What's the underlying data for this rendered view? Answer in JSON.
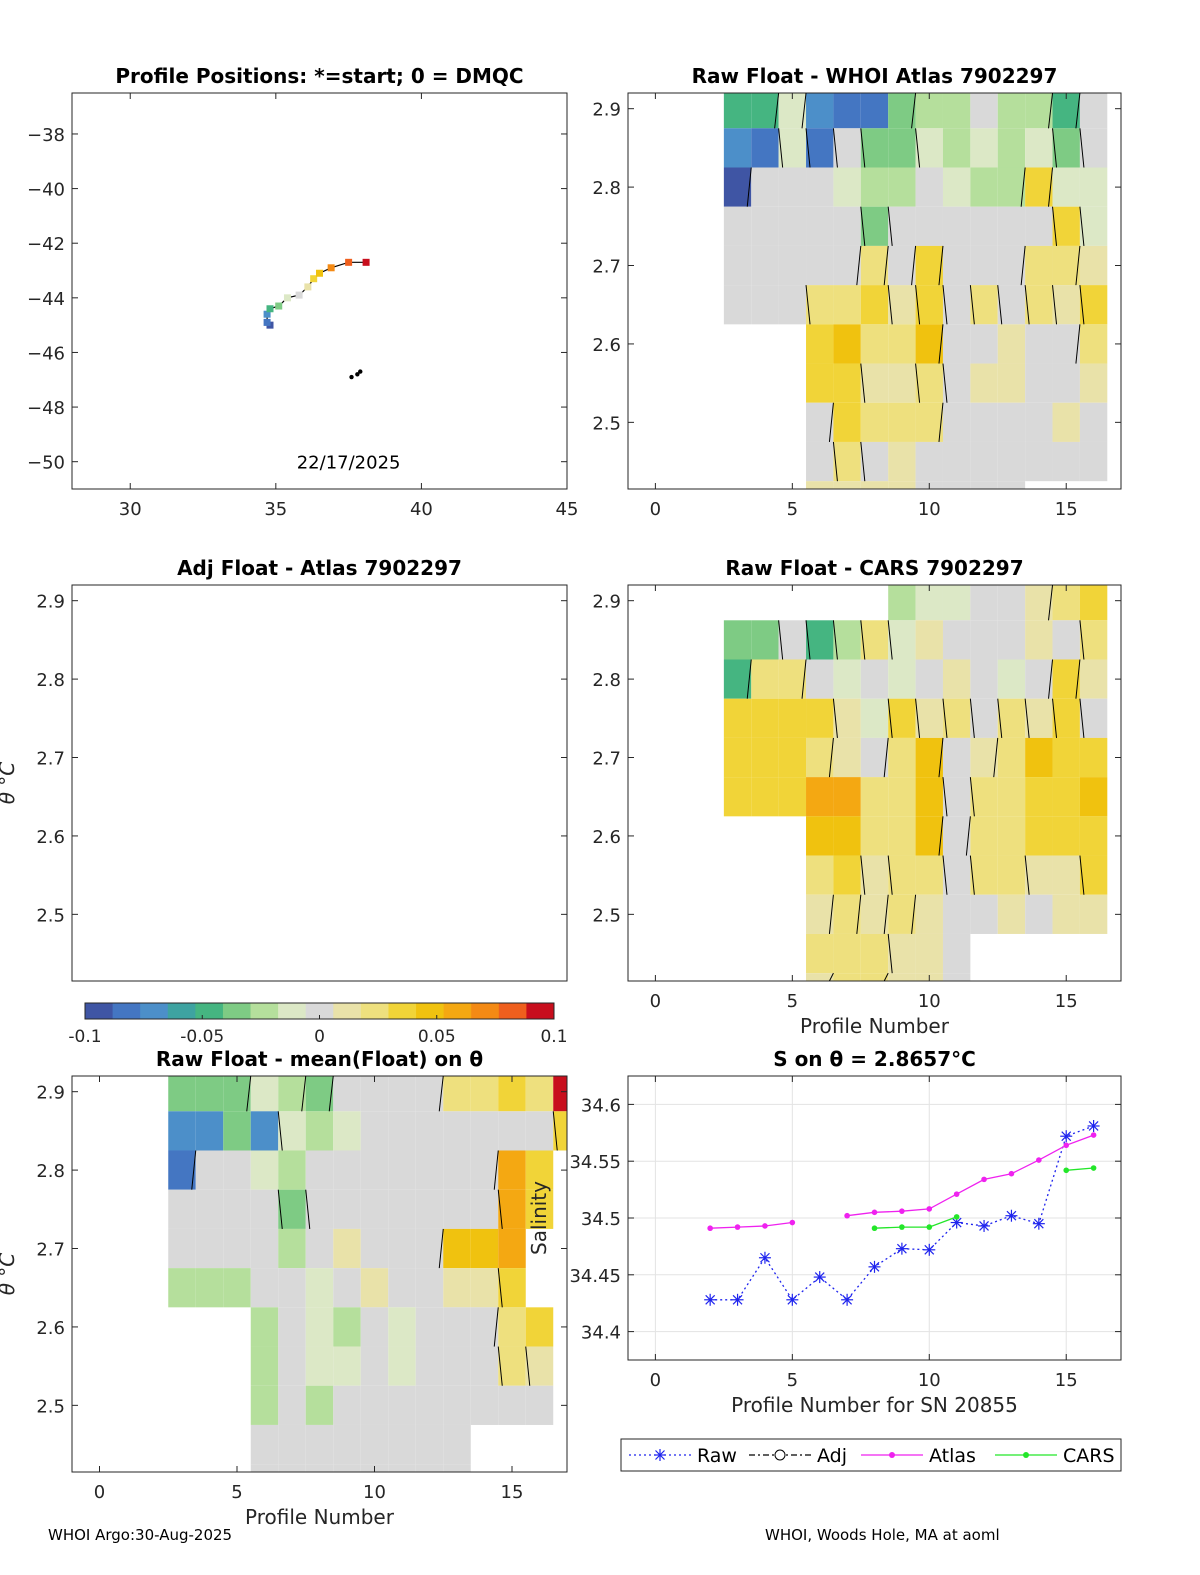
{
  "footer": {
    "left": "WHOI Argo:30-Aug-2025",
    "right": "WHOI, Woods Hole, MA at aoml"
  },
  "colors": {
    "colormap": [
      "#3f55a4",
      "#4476c2",
      "#4c8fc9",
      "#3ea3a1",
      "#45b581",
      "#7ecb84",
      "#b5df9c",
      "#dce8c6",
      "#d9d9d9",
      "#e9e2a9",
      "#eee07e",
      "#f1d438",
      "#f0c20f",
      "#f4a812",
      "#f48a14",
      "#ef5f1d",
      "#c80e1d"
    ],
    "raw": "#1f24ee",
    "adj": "#000000",
    "atlas": "#ef22ef",
    "cars": "#23e629",
    "track_line": "#000000"
  },
  "chart_data": [
    {
      "id": "map",
      "type": "scatter",
      "title": "Profile Positions: *=start; 0 = DMQC",
      "annotation": "22/17/2025",
      "xlabel": "",
      "ylabel": "",
      "xlim": [
        28,
        45
      ],
      "ylim": [
        -51,
        -36.5
      ],
      "xticks": [
        30,
        35,
        40,
        45
      ],
      "yticks": [
        -38,
        -40,
        -42,
        -44,
        -46,
        -48,
        -50
      ],
      "track": [
        {
          "lon": 34.8,
          "lat": -45.0
        },
        {
          "lon": 34.7,
          "lat": -44.9
        },
        {
          "lon": 34.7,
          "lat": -44.6
        },
        {
          "lon": 34.8,
          "lat": -44.4
        },
        {
          "lon": 35.1,
          "lat": -44.3
        },
        {
          "lon": 35.4,
          "lat": -44.0
        },
        {
          "lon": 35.8,
          "lat": -43.9
        },
        {
          "lon": 36.1,
          "lat": -43.6
        },
        {
          "lon": 36.3,
          "lat": -43.3
        },
        {
          "lon": 36.5,
          "lat": -43.1
        },
        {
          "lon": 36.9,
          "lat": -42.9
        },
        {
          "lon": 37.5,
          "lat": -42.7
        },
        {
          "lon": 38.1,
          "lat": -42.7
        }
      ],
      "other_points": [
        {
          "lon": 37.6,
          "lat": -46.9
        },
        {
          "lon": 37.8,
          "lat": -46.8
        },
        {
          "lon": 37.9,
          "lat": -46.7
        }
      ]
    },
    {
      "id": "raw_atlas",
      "type": "heatmap",
      "title": "Raw Float - WHOI Atlas  7902297",
      "xlabel": "",
      "ylabel": "",
      "xlim": [
        -1,
        17
      ],
      "ylim": [
        2.415,
        2.92
      ],
      "xticks": [
        0,
        5,
        10,
        15
      ],
      "yticks": [
        2.5,
        2.6,
        2.7,
        2.8,
        2.9
      ],
      "theta_levels": [
        2.9,
        2.85,
        2.8,
        2.75,
        2.7,
        2.65,
        2.6,
        2.55,
        2.5,
        2.45,
        2.4
      ],
      "grid": [
        [
          null,
          null,
          null,
          -0.05,
          -0.05,
          -0.01,
          -0.07,
          -0.08,
          -0.08,
          -0.04,
          -0.02,
          -0.02,
          0,
          -0.02,
          -0.02,
          -0.05,
          0
        ],
        [
          null,
          null,
          null,
          -0.07,
          -0.08,
          -0.01,
          -0.08,
          0,
          -0.03,
          -0.03,
          -0.01,
          -0.02,
          -0.01,
          -0.02,
          -0.01,
          -0.03,
          0
        ],
        [
          null,
          null,
          null,
          -0.09,
          -0.005,
          -0.005,
          -0.005,
          -0.01,
          -0.02,
          -0.02,
          -0.005,
          -0.01,
          -0.02,
          -0.02,
          0.03,
          -0.01,
          -0.01
        ],
        [
          null,
          null,
          null,
          0,
          0,
          0,
          0,
          0,
          -0.03,
          -0.005,
          0,
          -0.005,
          0,
          0,
          0,
          0.03,
          -0.01
        ],
        [
          null,
          null,
          null,
          0,
          0,
          0,
          0,
          0,
          0.02,
          0,
          0.04,
          0,
          0,
          0,
          0.02,
          0.025,
          0.01
        ],
        [
          null,
          null,
          null,
          0.005,
          0.005,
          0.005,
          0.02,
          0.02,
          0.03,
          0.01,
          0.04,
          0,
          0.02,
          0.005,
          0.02,
          0.01,
          0.04
        ],
        [
          null,
          null,
          null,
          null,
          null,
          null,
          0.04,
          0.05,
          0.02,
          0.02,
          0.05,
          0,
          0,
          0.01,
          0,
          0.005,
          0.02
        ],
        [
          null,
          null,
          null,
          null,
          null,
          null,
          0.03,
          0.04,
          0.01,
          0.01,
          0.02,
          0,
          0.01,
          0.01,
          0,
          0.005,
          0.01
        ],
        [
          null,
          null,
          null,
          null,
          null,
          null,
          0.005,
          0.03,
          0.02,
          0.025,
          0.02,
          0,
          0,
          0.005,
          0,
          0.01,
          0
        ],
        [
          null,
          null,
          null,
          null,
          null,
          null,
          0,
          0.02,
          0,
          0.01,
          0,
          0,
          0,
          0.005,
          0,
          0,
          0
        ],
        [
          null,
          null,
          null,
          null,
          null,
          null,
          0.01,
          0.01,
          0.01,
          0.01,
          0.005,
          0,
          0,
          0,
          null,
          null,
          null
        ]
      ]
    },
    {
      "id": "adj_atlas",
      "type": "heatmap",
      "title": "Adj Float - Atlas  7902297",
      "xlabel": "",
      "ylabel": "θ °C",
      "xlim": [
        -1,
        17
      ],
      "ylim": [
        2.415,
        2.92
      ],
      "xticks": [],
      "yticks": [
        2.5,
        2.6,
        2.7,
        2.8,
        2.9
      ],
      "grid": []
    },
    {
      "id": "raw_cars",
      "type": "heatmap",
      "title": "Raw Float - CARS  7902297",
      "xlabel": "Profile Number",
      "ylabel": "",
      "xlim": [
        -1,
        17
      ],
      "ylim": [
        2.415,
        2.92
      ],
      "xticks": [
        0,
        5,
        10,
        15
      ],
      "yticks": [
        2.5,
        2.6,
        2.7,
        2.8,
        2.9
      ],
      "theta_levels": [
        2.9,
        2.85,
        2.8,
        2.75,
        2.7,
        2.65,
        2.6,
        2.55,
        2.5,
        2.45,
        2.4
      ],
      "grid": [
        [
          null,
          null,
          null,
          null,
          null,
          null,
          null,
          null,
          null,
          -0.02,
          -0.01,
          -0.01,
          0,
          0,
          0.01,
          0.02,
          0.04
        ],
        [
          null,
          null,
          null,
          -0.03,
          -0.04,
          0,
          -0.05,
          -0.02,
          0.02,
          -0.015,
          0.01,
          0,
          0,
          0,
          0.01,
          0,
          0.02
        ],
        [
          null,
          null,
          null,
          -0.05,
          0.02,
          0.02,
          0,
          -0.01,
          0,
          -0.01,
          0,
          0.01,
          0,
          -0.01,
          0,
          0.04,
          0.01
        ],
        [
          null,
          null,
          null,
          0.035,
          0.04,
          0.04,
          0.03,
          0.01,
          -0.01,
          0.03,
          0.01,
          0.02,
          0.005,
          0.02,
          0.01,
          0.04,
          0
        ],
        [
          null,
          null,
          null,
          0.04,
          0.04,
          0.035,
          0.02,
          0.01,
          0,
          0.02,
          0.05,
          0,
          0.01,
          0.02,
          0.045,
          0.03,
          0.04
        ],
        [
          null,
          null,
          null,
          0.04,
          0.04,
          0.04,
          0.055,
          0.06,
          0.025,
          0.025,
          0.05,
          0,
          0.02,
          0.02,
          0.035,
          0.03,
          0.045
        ],
        [
          null,
          null,
          null,
          null,
          null,
          null,
          0.045,
          0.05,
          0.02,
          0.02,
          0.05,
          0,
          0.02,
          0.02,
          0.04,
          0.03,
          0.04
        ],
        [
          null,
          null,
          null,
          null,
          null,
          null,
          0.02,
          0.04,
          0.015,
          0.02,
          0.02,
          0,
          0.02,
          0.02,
          0.01,
          0.01,
          0.035
        ],
        [
          null,
          null,
          null,
          null,
          null,
          null,
          0.01,
          0.02,
          0.01,
          0.02,
          0.01,
          0,
          0,
          0.01,
          0,
          0.01,
          0.01
        ],
        [
          null,
          null,
          null,
          null,
          null,
          null,
          0.02,
          0.02,
          0.02,
          0.01,
          0.01,
          0,
          null,
          null,
          null,
          null,
          null
        ],
        [
          null,
          null,
          null,
          null,
          null,
          null,
          0.015,
          0.02,
          0.02,
          0.015,
          0.015,
          0,
          null,
          null,
          null,
          null,
          null
        ]
      ]
    },
    {
      "id": "raw_mean",
      "type": "heatmap",
      "title": "Raw Float - mean(Float) on θ",
      "xlabel": "Profile Number",
      "ylabel": "θ °C",
      "xlim": [
        -1,
        17
      ],
      "ylim": [
        2.415,
        2.92
      ],
      "xticks": [
        0,
        5,
        10,
        15
      ],
      "yticks": [
        2.5,
        2.6,
        2.7,
        2.8,
        2.9
      ],
      "colorbar": {
        "min": -0.1,
        "max": 0.1,
        "ticks": [
          "-0.1",
          "-0.05",
          "0",
          "0.05",
          "0.1"
        ]
      },
      "theta_levels": [
        2.9,
        2.85,
        2.8,
        2.75,
        2.7,
        2.65,
        2.6,
        2.55,
        2.5,
        2.45,
        2.4
      ],
      "grid": [
        [
          null,
          null,
          null,
          -0.04,
          -0.04,
          -0.04,
          -0.01,
          -0.02,
          -0.03,
          0,
          0,
          0,
          0,
          0.02,
          0.02,
          0.04,
          0.02,
          0.1
        ],
        [
          null,
          null,
          null,
          -0.07,
          -0.07,
          -0.03,
          -0.07,
          -0.01,
          -0.02,
          -0.01,
          0,
          0,
          0,
          0,
          0,
          0,
          0,
          0.04
        ],
        [
          null,
          null,
          null,
          -0.08,
          0,
          0,
          -0.01,
          -0.02,
          0,
          0,
          0,
          0,
          0,
          0,
          0,
          0.06,
          0.03
        ],
        [
          null,
          null,
          null,
          0,
          0,
          0,
          0,
          -0.03,
          0,
          0,
          0,
          0,
          0,
          0,
          0,
          0.06,
          0.03
        ],
        [
          null,
          null,
          null,
          0,
          0,
          0,
          0,
          -0.02,
          -0.005,
          0.01,
          0,
          0,
          0,
          0.05,
          0.05,
          0.06
        ],
        [
          null,
          null,
          null,
          -0.02,
          -0.02,
          -0.02,
          0,
          0,
          -0.01,
          0,
          0.01,
          0,
          0.005,
          0.01,
          0.01,
          0.04
        ],
        [
          null,
          null,
          null,
          null,
          null,
          null,
          -0.02,
          0,
          -0.01,
          -0.02,
          0,
          -0.01,
          0,
          0,
          0.005,
          0.02,
          0.03
        ],
        [
          null,
          null,
          null,
          null,
          null,
          null,
          -0.02,
          0,
          -0.01,
          -0.01,
          0,
          -0.01,
          0,
          0.005,
          0,
          0.02,
          0.01
        ],
        [
          null,
          null,
          null,
          null,
          null,
          null,
          -0.02,
          0,
          -0.02,
          0,
          0,
          -0.005,
          0,
          0,
          0,
          0,
          0
        ],
        [
          null,
          null,
          null,
          null,
          null,
          null,
          0,
          0,
          0,
          0,
          0,
          0,
          0,
          0,
          null,
          null,
          null
        ],
        [
          null,
          null,
          null,
          null,
          null,
          null,
          0,
          0,
          0,
          0,
          0,
          0,
          0,
          0,
          null,
          null,
          null
        ]
      ]
    },
    {
      "id": "salinity",
      "type": "line",
      "title": "S on θ = 2.8657°C",
      "xlabel": "Profile Number for SN 20855",
      "ylabel": "Salinity",
      "xlim": [
        -1,
        17
      ],
      "ylim": [
        34.375,
        34.625
      ],
      "xticks": [
        0,
        5,
        10,
        15
      ],
      "yticks": [
        34.4,
        34.45,
        34.5,
        34.55,
        34.6
      ],
      "grid": true,
      "legend_position": "bottom",
      "series": [
        {
          "name": "Raw",
          "marker": "asterisk",
          "linestyle": "dotted",
          "x": [
            2,
            3,
            4,
            5,
            6,
            7,
            8,
            9,
            10,
            11,
            12,
            13,
            14,
            15,
            16
          ],
          "values": [
            34.428,
            34.428,
            34.465,
            34.428,
            34.448,
            34.428,
            34.457,
            34.473,
            34.472,
            34.496,
            34.493,
            34.502,
            34.495,
            34.572,
            34.581
          ]
        },
        {
          "name": "Adj",
          "marker": "circle",
          "linestyle": "dashdot",
          "x": [],
          "values": []
        },
        {
          "name": "Atlas",
          "marker": "dot",
          "linestyle": "solid",
          "x": [
            2,
            3,
            4,
            5,
            null,
            7,
            8,
            9,
            10,
            11,
            12,
            13,
            14,
            15,
            16
          ],
          "values": [
            34.491,
            34.492,
            34.493,
            34.496,
            null,
            34.502,
            34.505,
            34.506,
            34.508,
            34.521,
            34.534,
            34.539,
            34.551,
            34.564,
            34.573
          ]
        },
        {
          "name": "CARS",
          "marker": "dot",
          "linestyle": "solid",
          "x": [
            8,
            9,
            10,
            11,
            null,
            15,
            16
          ],
          "values": [
            34.491,
            34.492,
            34.492,
            34.501,
            null,
            34.542,
            34.544
          ]
        }
      ]
    }
  ]
}
